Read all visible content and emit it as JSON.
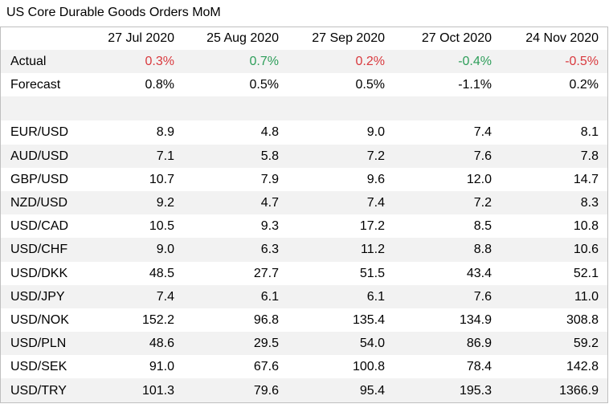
{
  "title": "US Core Durable Goods Orders MoM",
  "colors": {
    "positive": "#2e9e5a",
    "negative": "#d9393e",
    "neutral": "#000000",
    "shade": "#f2f2f2"
  },
  "headers": [
    "27 Jul 2020",
    "25 Aug 2020",
    "27 Sep 2020",
    "27 Oct 2020",
    "24 Nov 2020"
  ],
  "actual": {
    "label": "Actual",
    "values": [
      "0.3%",
      "0.7%",
      "0.2%",
      "-0.4%",
      "-0.5%"
    ],
    "tones": [
      "negative",
      "positive",
      "negative",
      "positive",
      "negative"
    ]
  },
  "forecast": {
    "label": "Forecast",
    "values": [
      "0.8%",
      "0.5%",
      "0.5%",
      "-1.1%",
      "0.2%"
    ]
  },
  "rows": [
    {
      "label": "EUR/USD",
      "values": [
        "8.9",
        "4.8",
        "9.0",
        "7.4",
        "8.1"
      ]
    },
    {
      "label": "AUD/USD",
      "values": [
        "7.1",
        "5.8",
        "7.2",
        "7.6",
        "7.8"
      ]
    },
    {
      "label": "GBP/USD",
      "values": [
        "10.7",
        "7.9",
        "9.6",
        "12.0",
        "14.7"
      ]
    },
    {
      "label": "NZD/USD",
      "values": [
        "9.2",
        "4.7",
        "7.4",
        "7.2",
        "8.3"
      ]
    },
    {
      "label": "USD/CAD",
      "values": [
        "10.5",
        "9.3",
        "17.2",
        "8.5",
        "10.8"
      ]
    },
    {
      "label": "USD/CHF",
      "values": [
        "9.0",
        "6.3",
        "11.2",
        "8.8",
        "10.6"
      ]
    },
    {
      "label": "USD/DKK",
      "values": [
        "48.5",
        "27.7",
        "51.5",
        "43.4",
        "52.1"
      ]
    },
    {
      "label": "USD/JPY",
      "values": [
        "7.4",
        "6.1",
        "6.1",
        "7.6",
        "11.0"
      ]
    },
    {
      "label": "USD/NOK",
      "values": [
        "152.2",
        "96.8",
        "135.4",
        "134.9",
        "308.8"
      ]
    },
    {
      "label": "USD/PLN",
      "values": [
        "48.6",
        "29.5",
        "54.0",
        "86.9",
        "59.2"
      ]
    },
    {
      "label": "USD/SEK",
      "values": [
        "91.0",
        "67.6",
        "100.8",
        "78.4",
        "142.8"
      ]
    },
    {
      "label": "USD/TRY",
      "values": [
        "101.3",
        "79.6",
        "95.4",
        "195.3",
        "1366.9"
      ]
    }
  ]
}
